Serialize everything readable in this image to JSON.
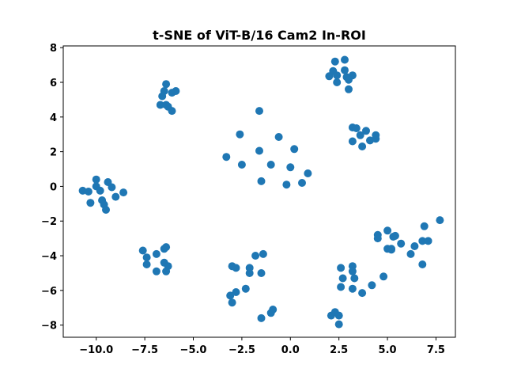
{
  "chart_data": {
    "type": "scatter",
    "title": "t-SNE of ViT-B/16 Cam2 In-ROI",
    "xlabel": "",
    "ylabel": "",
    "xlim": [
      -11.7,
      8.5
    ],
    "ylim": [
      -8.7,
      8.1
    ],
    "x_ticks": [
      -10.0,
      -7.5,
      -5.0,
      -2.5,
      0.0,
      2.5,
      5.0,
      7.5
    ],
    "x_tick_labels": [
      "−10.0",
      "−7.5",
      "−5.0",
      "−2.5",
      "0.0",
      "2.5",
      "5.0",
      "7.5"
    ],
    "y_ticks": [
      8,
      6,
      4,
      2,
      0,
      -2,
      -4,
      -6,
      -8
    ],
    "y_tick_labels": [
      "8",
      "6",
      "4",
      "2",
      "0",
      "−2",
      "−4",
      "−6",
      "−8"
    ],
    "grid": false,
    "marker_color": "#1f77b4",
    "points": [
      [
        -10.7,
        -0.25
      ],
      [
        -10.4,
        -0.3
      ],
      [
        -10.3,
        -0.95
      ],
      [
        -10.0,
        0.0
      ],
      [
        -10.0,
        0.4
      ],
      [
        -9.8,
        -0.25
      ],
      [
        -9.7,
        -0.8
      ],
      [
        -9.6,
        -1.05
      ],
      [
        -9.5,
        -1.35
      ],
      [
        -9.4,
        0.25
      ],
      [
        -9.2,
        -0.05
      ],
      [
        -9.0,
        -0.6
      ],
      [
        -8.6,
        -0.35
      ],
      [
        -6.4,
        5.9
      ],
      [
        -6.5,
        5.5
      ],
      [
        -6.6,
        5.2
      ],
      [
        -6.1,
        5.4
      ],
      [
        -5.9,
        5.5
      ],
      [
        -6.7,
        4.7
      ],
      [
        -6.4,
        4.7
      ],
      [
        -6.3,
        4.6
      ],
      [
        -6.1,
        4.35
      ],
      [
        3.2,
        3.4
      ],
      [
        3.4,
        3.35
      ],
      [
        3.6,
        2.95
      ],
      [
        3.9,
        3.2
      ],
      [
        4.1,
        2.65
      ],
      [
        4.4,
        2.95
      ],
      [
        4.4,
        2.75
      ],
      [
        3.2,
        2.6
      ],
      [
        3.7,
        2.3
      ],
      [
        2.0,
        6.35
      ],
      [
        2.2,
        6.65
      ],
      [
        2.3,
        7.2
      ],
      [
        2.4,
        6.4
      ],
      [
        2.4,
        6.0
      ],
      [
        2.8,
        7.3
      ],
      [
        2.8,
        6.7
      ],
      [
        2.9,
        6.3
      ],
      [
        3.0,
        6.15
      ],
      [
        3.2,
        6.4
      ],
      [
        3.0,
        5.6
      ],
      [
        -1.6,
        4.35
      ],
      [
        -2.6,
        3.0
      ],
      [
        -1.6,
        2.05
      ],
      [
        -0.6,
        2.85
      ],
      [
        0.2,
        2.15
      ],
      [
        -3.3,
        1.7
      ],
      [
        -2.5,
        1.25
      ],
      [
        -1.0,
        1.25
      ],
      [
        0.0,
        1.1
      ],
      [
        0.9,
        0.75
      ],
      [
        -1.5,
        0.3
      ],
      [
        -0.2,
        0.1
      ],
      [
        0.6,
        0.2
      ],
      [
        -7.6,
        -3.7
      ],
      [
        -7.4,
        -4.1
      ],
      [
        -7.4,
        -4.5
      ],
      [
        -6.9,
        -3.9
      ],
      [
        -6.9,
        -4.9
      ],
      [
        -6.5,
        -3.6
      ],
      [
        -6.4,
        -3.5
      ],
      [
        -6.5,
        -4.4
      ],
      [
        -6.3,
        -4.6
      ],
      [
        -6.4,
        -4.9
      ],
      [
        -3.0,
        -4.6
      ],
      [
        -2.8,
        -4.7
      ],
      [
        -2.1,
        -4.7
      ],
      [
        -2.1,
        -5.0
      ],
      [
        -1.8,
        -4.0
      ],
      [
        -1.4,
        -3.9
      ],
      [
        -1.5,
        -5.0
      ],
      [
        -3.1,
        -6.3
      ],
      [
        -2.8,
        -6.1
      ],
      [
        -2.3,
        -5.9
      ],
      [
        -3.0,
        -6.7
      ],
      [
        -1.0,
        -7.3
      ],
      [
        -0.9,
        -7.1
      ],
      [
        -1.5,
        -7.6
      ],
      [
        4.5,
        -2.8
      ],
      [
        4.5,
        -3.0
      ],
      [
        5.0,
        -2.55
      ],
      [
        5.3,
        -2.9
      ],
      [
        5.4,
        -2.85
      ],
      [
        5.7,
        -3.3
      ],
      [
        5.0,
        -3.6
      ],
      [
        5.2,
        -3.65
      ],
      [
        5.2,
        -3.6
      ],
      [
        6.2,
        -3.9
      ],
      [
        6.4,
        -3.45
      ],
      [
        6.8,
        -3.15
      ],
      [
        7.1,
        -3.15
      ],
      [
        6.9,
        -2.3
      ],
      [
        7.7,
        -1.95
      ],
      [
        6.8,
        -4.5
      ],
      [
        4.8,
        -5.2
      ],
      [
        2.6,
        -4.7
      ],
      [
        2.7,
        -5.3
      ],
      [
        3.2,
        -4.6
      ],
      [
        3.2,
        -4.9
      ],
      [
        3.3,
        -5.3
      ],
      [
        2.6,
        -5.8
      ],
      [
        3.2,
        -5.9
      ],
      [
        3.7,
        -6.15
      ],
      [
        4.2,
        -5.7
      ],
      [
        2.1,
        -7.45
      ],
      [
        2.3,
        -7.25
      ],
      [
        2.5,
        -7.45
      ],
      [
        2.5,
        -7.95
      ]
    ]
  }
}
